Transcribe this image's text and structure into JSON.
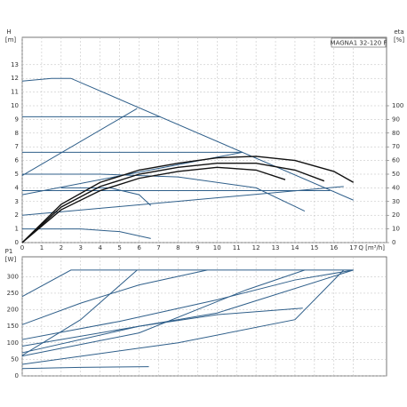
{
  "chart_data": [
    {
      "type": "line",
      "title": "MAGNA1 32-120 F",
      "y_label": "H",
      "y_unit": "[m]",
      "y2_label": "eta",
      "y2_unit": "[%]",
      "x_label": "Q [m³/h]",
      "xlim": [
        0,
        18.7
      ],
      "xticks": [
        0,
        1,
        2,
        3,
        4,
        5,
        6,
        7,
        8,
        9,
        10,
        11,
        12,
        13,
        14,
        15,
        16,
        17
      ],
      "ylim": [
        0,
        15
      ],
      "yticks": [
        0,
        1,
        2,
        3,
        4,
        5,
        6,
        7,
        8,
        9,
        10,
        11,
        12,
        13
      ],
      "y2lim": [
        0,
        150
      ],
      "y2ticks": [
        0,
        10,
        20,
        30,
        40,
        50,
        60,
        70,
        80,
        90,
        100
      ],
      "grid": true,
      "series": [
        {
          "color": "#2f5f8a",
          "x": [
            0,
            1.5,
            2.5,
            17
          ],
          "values": [
            11.8,
            12,
            12,
            3.1
          ]
        },
        {
          "color": "#2f5f8a",
          "x": [
            0,
            7.1
          ],
          "values": [
            9.2,
            9.2
          ]
        },
        {
          "color": "#2f5f8a",
          "x": [
            0,
            11.3
          ],
          "values": [
            6.6,
            6.6
          ]
        },
        {
          "color": "#2f5f8a",
          "x": [
            0,
            5.9
          ],
          "values": [
            4.9,
            9.8
          ]
        },
        {
          "color": "#2f5f8a",
          "x": [
            0,
            11.3
          ],
          "values": [
            3.5,
            6.6
          ]
        },
        {
          "color": "#2f5f8a",
          "x": [
            0,
            16.5
          ],
          "values": [
            2,
            4.1
          ]
        },
        {
          "color": "#2f5f8a",
          "x": [
            0,
            15.8
          ],
          "values": [
            3.8,
            3.8
          ]
        },
        {
          "color": "#2f5f8a",
          "x": [
            0,
            4,
            8,
            12,
            14.5
          ],
          "values": [
            5,
            5,
            4.8,
            4,
            2.3
          ]
        },
        {
          "color": "#2f5f8a",
          "x": [
            0,
            3,
            5,
            6.6
          ],
          "values": [
            1,
            1,
            0.8,
            0.3
          ]
        },
        {
          "color": "#2f5f8a",
          "x": [
            2,
            4.5,
            6,
            6.6
          ],
          "values": [
            4,
            4,
            3.5,
            2.7
          ]
        },
        {
          "color": "#111111",
          "axis": "y2",
          "x": [
            0,
            2,
            4,
            6,
            8,
            10,
            12,
            14,
            16,
            17
          ],
          "values": [
            0,
            28,
            44,
            53,
            58,
            62,
            63,
            60,
            52,
            44
          ]
        },
        {
          "color": "#111111",
          "axis": "y2",
          "x": [
            0,
            2,
            4,
            6,
            8,
            10,
            12,
            14,
            15.5
          ],
          "values": [
            0,
            26,
            41,
            50,
            55,
            58,
            58,
            53,
            45
          ]
        },
        {
          "color": "#111111",
          "axis": "y2",
          "x": [
            0,
            2,
            4,
            6,
            8,
            10,
            12,
            13.5
          ],
          "values": [
            0,
            24,
            38,
            47,
            52,
            55,
            53,
            46
          ]
        }
      ]
    },
    {
      "type": "line",
      "y_label": "P1",
      "y_unit": "[W]",
      "xlim": [
        0,
        18.7
      ],
      "xticks": [
        0,
        1,
        2,
        3,
        4,
        5,
        6,
        7,
        8,
        9,
        10,
        11,
        12,
        13,
        14,
        15,
        16,
        17
      ],
      "ylim": [
        0,
        360
      ],
      "yticks": [
        0,
        50,
        100,
        150,
        200,
        250,
        300
      ],
      "grid": true,
      "series": [
        {
          "color": "#2f5f8a",
          "x": [
            0,
            2.5,
            17
          ],
          "values": [
            240,
            320,
            320
          ]
        },
        {
          "color": "#2f5f8a",
          "x": [
            0,
            3,
            6,
            9.5
          ],
          "values": [
            155,
            220,
            275,
            320
          ]
        },
        {
          "color": "#2f5f8a",
          "x": [
            0,
            3,
            5.9
          ],
          "values": [
            62,
            170,
            320
          ]
        },
        {
          "color": "#2f5f8a",
          "x": [
            0,
            5,
            10,
            14,
            17
          ],
          "values": [
            110,
            165,
            230,
            290,
            320
          ]
        },
        {
          "color": "#2f5f8a",
          "x": [
            0,
            10,
            17
          ],
          "values": [
            90,
            190,
            320
          ]
        },
        {
          "color": "#2f5f8a",
          "x": [
            0,
            6,
            11.5,
            14.5
          ],
          "values": [
            60,
            130,
            260,
            320
          ]
        },
        {
          "color": "#2f5f8a",
          "x": [
            0,
            6,
            10,
            14.4
          ],
          "values": [
            70,
            150,
            185,
            205
          ]
        },
        {
          "color": "#2f5f8a",
          "x": [
            0,
            8,
            14,
            16.5
          ],
          "values": [
            35,
            100,
            170,
            320
          ]
        },
        {
          "color": "#2f5f8a",
          "x": [
            0,
            3,
            6.5
          ],
          "values": [
            22,
            26,
            28
          ]
        }
      ]
    }
  ]
}
